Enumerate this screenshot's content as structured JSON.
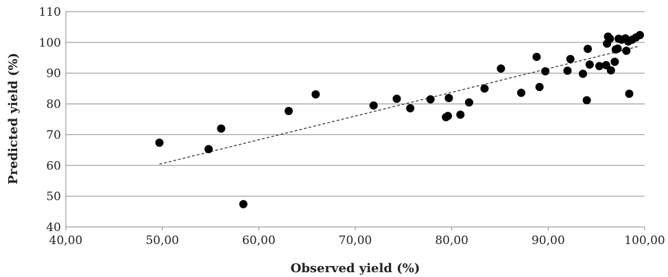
{
  "chart_data": {
    "type": "scatter",
    "xlabel": "Observed yield (%)",
    "ylabel": "Predicted yield (%)",
    "xlim": [
      40,
      100
    ],
    "ylim": [
      40,
      110
    ],
    "x_ticks": [
      "40,00",
      "50,00",
      "60,00",
      "70,00",
      "80,00",
      "90,00",
      "100,00"
    ],
    "y_ticks": [
      "40",
      "50",
      "60",
      "70",
      "80",
      "90",
      "100",
      "110"
    ],
    "x_tick_values": [
      40,
      50,
      60,
      70,
      80,
      90,
      100
    ],
    "y_tick_values": [
      40,
      50,
      60,
      70,
      80,
      90,
      100,
      110
    ],
    "grid": "horizontal",
    "trendline": {
      "style": "dashed",
      "x": [
        49.7,
        99.5
      ],
      "y": [
        60.4,
        98.8
      ]
    },
    "points": [
      [
        49.7,
        67.4
      ],
      [
        54.8,
        65.3
      ],
      [
        56.1,
        72.0
      ],
      [
        58.4,
        47.4
      ],
      [
        63.1,
        77.7
      ],
      [
        65.9,
        83.1
      ],
      [
        71.9,
        79.5
      ],
      [
        74.3,
        81.7
      ],
      [
        75.7,
        78.6
      ],
      [
        77.8,
        81.5
      ],
      [
        79.4,
        75.7
      ],
      [
        79.6,
        76.1
      ],
      [
        79.7,
        81.9
      ],
      [
        80.9,
        76.5
      ],
      [
        81.8,
        80.5
      ],
      [
        83.4,
        85.0
      ],
      [
        85.1,
        91.5
      ],
      [
        87.2,
        83.6
      ],
      [
        88.8,
        95.3
      ],
      [
        89.1,
        85.5
      ],
      [
        89.7,
        90.6
      ],
      [
        92.0,
        90.8
      ],
      [
        92.3,
        94.6
      ],
      [
        93.6,
        89.8
      ],
      [
        94.0,
        81.2
      ],
      [
        94.1,
        97.9
      ],
      [
        94.3,
        92.8
      ],
      [
        95.3,
        92.3
      ],
      [
        96.0,
        92.6
      ],
      [
        96.1,
        99.6
      ],
      [
        96.2,
        101.9
      ],
      [
        96.4,
        101.2
      ],
      [
        96.5,
        90.9
      ],
      [
        96.9,
        93.7
      ],
      [
        97.0,
        97.7
      ],
      [
        97.2,
        98.0
      ],
      [
        97.3,
        101.2
      ],
      [
        97.6,
        100.9
      ],
      [
        98.0,
        101.3
      ],
      [
        98.1,
        97.3
      ],
      [
        98.3,
        100.3
      ],
      [
        98.4,
        83.3
      ],
      [
        98.7,
        100.9
      ],
      [
        99.1,
        101.6
      ],
      [
        99.5,
        102.4
      ]
    ]
  }
}
